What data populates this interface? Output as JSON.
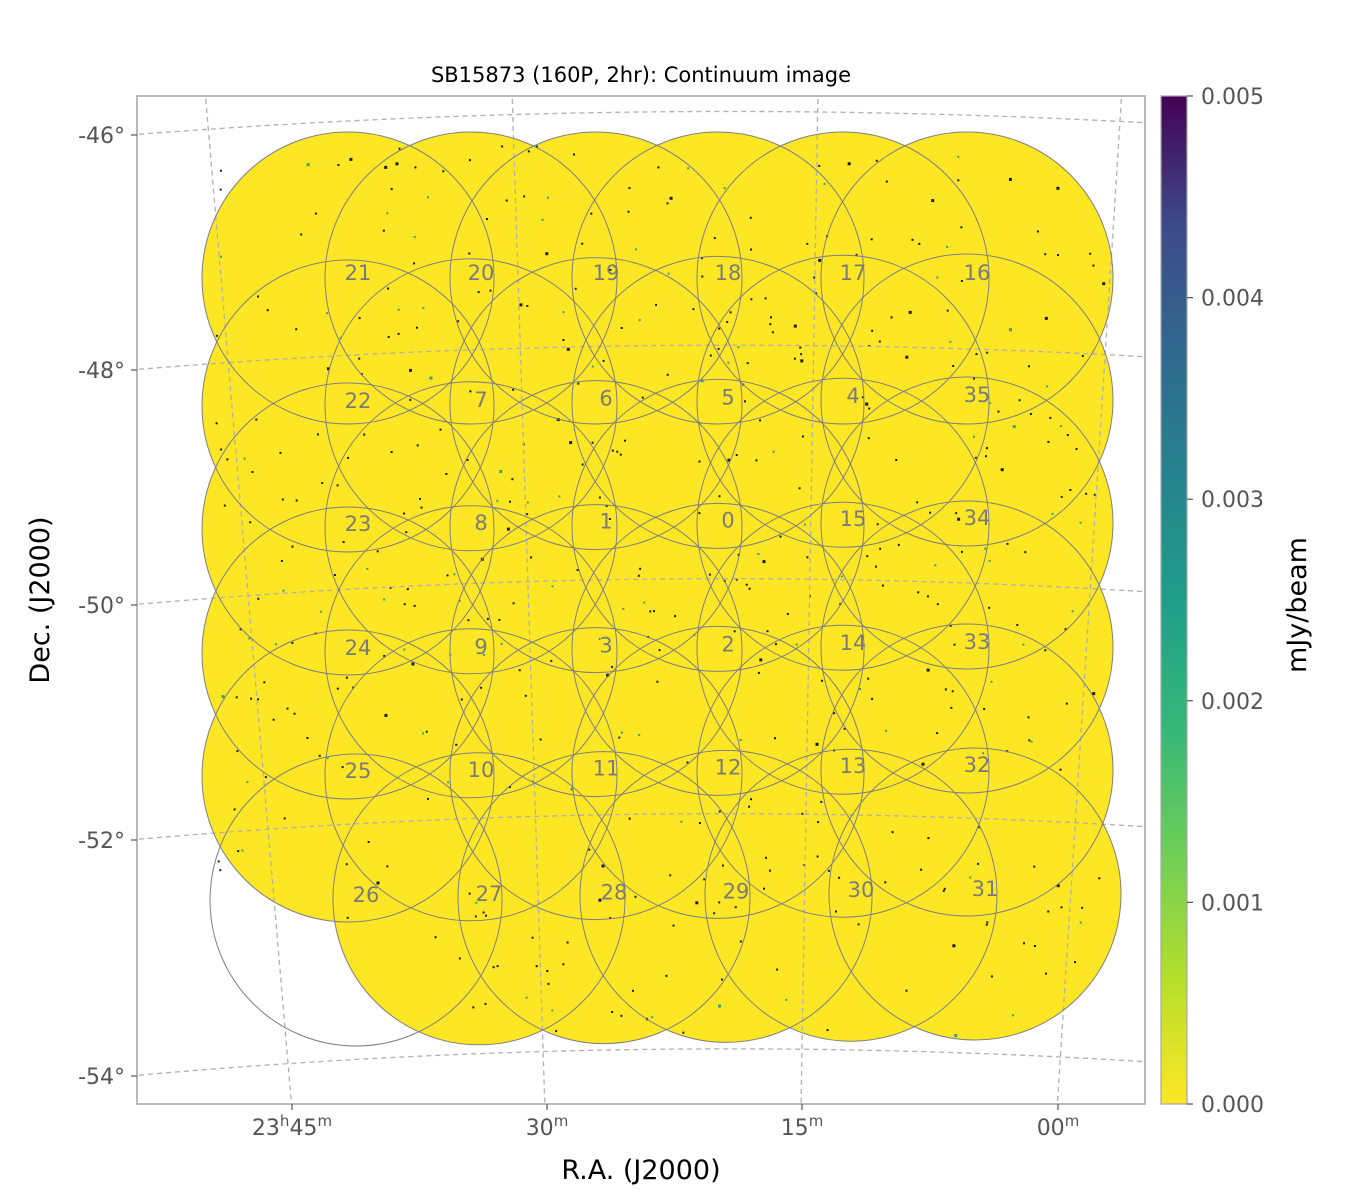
{
  "chart_data": {
    "type": "heatmap",
    "title": "SB15873 (160P, 2hr): Continuum image",
    "xlabel": "R.A. (J2000)",
    "ylabel": "Dec. (J2000)",
    "colorbar": {
      "label": "mJy/beam",
      "colormap": "viridis_r",
      "vmin": 0.0,
      "vmax": 0.005,
      "ticks": [
        "0.000",
        "0.001",
        "0.002",
        "0.003",
        "0.004",
        "0.005"
      ]
    },
    "x_ticks": [
      {
        "h": "23",
        "hs": "h",
        "m": "45",
        "ms": "m"
      },
      {
        "h": "",
        "hs": "",
        "m": "30",
        "ms": "m"
      },
      {
        "h": "",
        "hs": "",
        "m": "15",
        "ms": "m"
      },
      {
        "h": "",
        "hs": "",
        "m": "00",
        "ms": "m"
      }
    ],
    "y_ticks": [
      "-46°",
      "-48°",
      "-50°",
      "-52°",
      "-54°"
    ],
    "grid": "dashed gray coordinate grid",
    "beam_rows": [
      [
        "21",
        "20",
        "19",
        "18",
        "17",
        "16"
      ],
      [
        "22",
        "7",
        "6",
        "5",
        "4",
        "35"
      ],
      [
        "23",
        "8",
        "1",
        "0",
        "15",
        "34"
      ],
      [
        "24",
        "9",
        "3",
        "2",
        "14",
        "33"
      ],
      [
        "25",
        "10",
        "11",
        "12",
        "13",
        "32"
      ],
      [
        "26",
        "27",
        "28",
        "29",
        "30",
        "31"
      ]
    ],
    "image_color": "#fde725",
    "beam_outline_color": "#7f7f7f",
    "grid_color": "#b0b0b0",
    "frame_color": "#a8a8a8"
  }
}
